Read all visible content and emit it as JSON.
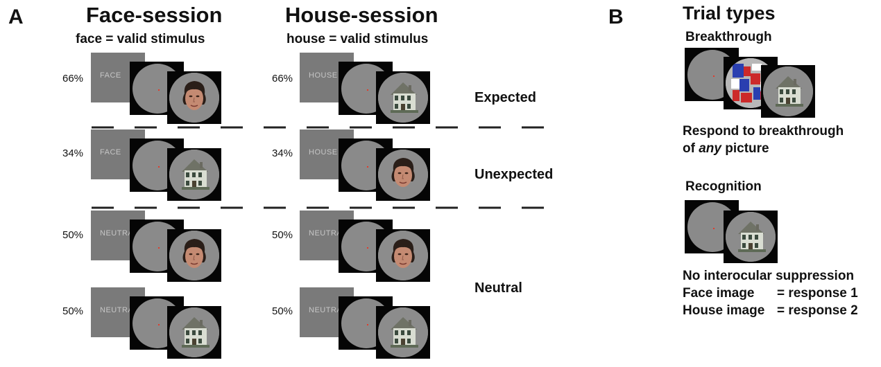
{
  "panels": {
    "a": "A",
    "b": "B"
  },
  "face_session": {
    "title": "Face-session",
    "subtitle": "face = valid stimulus"
  },
  "house_session": {
    "title": "House-session",
    "subtitle": "house = valid stimulus"
  },
  "conditions": {
    "expected": "Expected",
    "unexpected": "Unexpected",
    "neutral": "Neutral"
  },
  "face_rows": [
    {
      "percent": "66%",
      "cue": "FACE",
      "stimulus": "face"
    },
    {
      "percent": "34%",
      "cue": "FACE",
      "stimulus": "house"
    },
    {
      "percent": "50%",
      "cue": "NEUTRAL",
      "stimulus": "face"
    },
    {
      "percent": "50%",
      "cue": "NEUTRAL",
      "stimulus": "house"
    }
  ],
  "house_rows": [
    {
      "percent": "66%",
      "cue": "HOUSE",
      "stimulus": "house"
    },
    {
      "percent": "34%",
      "cue": "HOUSE",
      "stimulus": "face"
    },
    {
      "percent": "50%",
      "cue": "NEUTRAL",
      "stimulus": "face"
    },
    {
      "percent": "50%",
      "cue": "NEUTRAL",
      "stimulus": "house"
    }
  ],
  "trial_types": {
    "title": "Trial types",
    "breakthrough": {
      "label": "Breakthrough",
      "line1": "Respond to breakthrough",
      "line2_prefix": "of ",
      "line2_em": "any",
      "line2_suffix": " picture"
    },
    "recognition": {
      "label": "Recognition",
      "line1": "No interocular suppression",
      "face_label": "Face image",
      "face_response": "= response 1",
      "house_label": "House image",
      "house_response": "= response 2"
    }
  },
  "colors": {
    "fixation_dot": "#e23a2a",
    "mondrian_blue": "#2a3fb0",
    "mondrian_red": "#cc2a2a"
  }
}
